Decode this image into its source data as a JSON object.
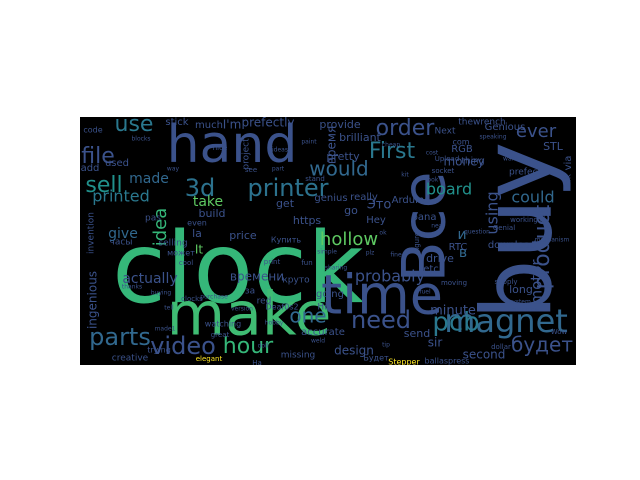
{
  "image": {
    "kind": "word cloud",
    "background_color": "#000000",
    "page_color": "#ffffff",
    "palette": [
      "#440154",
      "#3b528b",
      "#21918c",
      "#35b779",
      "#5ec962",
      "#fde725"
    ]
  },
  "words": [
    {
      "text": "clock",
      "color": "#35b779"
    },
    {
      "text": "make",
      "color": "#3fbc73"
    },
    {
      "text": "buy",
      "color": "#3b528b"
    },
    {
      "text": "hand",
      "color": "#3b528b"
    },
    {
      "text": "time",
      "color": "#3b528b"
    },
    {
      "text": "Все",
      "color": "#3b528b"
    },
    {
      "text": "magnet",
      "color": "#31688e"
    },
    {
      "text": "printer",
      "color": "#2c728e"
    },
    {
      "text": "3d",
      "color": "#2c728e"
    },
    {
      "text": "use",
      "color": "#2a788e"
    },
    {
      "text": "order",
      "color": "#3b528b"
    },
    {
      "text": "First",
      "color": "#2a788e"
    },
    {
      "text": "one",
      "color": "#31688e"
    },
    {
      "text": "need",
      "color": "#3b528b"
    },
    {
      "text": "pcb",
      "color": "#2a788e"
    },
    {
      "text": "будет",
      "color": "#3b528b"
    },
    {
      "text": "sell",
      "color": "#21918c"
    },
    {
      "text": "file",
      "color": "#3b528b"
    },
    {
      "text": "hour",
      "color": "#35b779"
    },
    {
      "text": "video",
      "color": "#3b528b"
    },
    {
      "text": "parts",
      "color": "#31688e"
    },
    {
      "text": "product",
      "color": "#3b528b"
    },
    {
      "text": "would",
      "color": "#31688e"
    },
    {
      "text": "ever",
      "color": "#3b528b"
    },
    {
      "text": "could",
      "color": "#31688e"
    },
    {
      "text": "idea",
      "color": "#35b779"
    },
    {
      "text": "using",
      "color": "#3b528b"
    },
    {
      "text": "board",
      "color": "#21918c"
    },
    {
      "text": "motor",
      "color": "#3b528b"
    },
    {
      "text": "hollow",
      "color": "#5ec962"
    },
    {
      "text": "printed",
      "color": "#2a788e"
    },
    {
      "text": "made",
      "color": "#31688e"
    },
    {
      "text": "give",
      "color": "#31688e"
    },
    {
      "text": "actually",
      "color": "#3b528b"
    },
    {
      "text": "probably",
      "color": "#3b528b"
    },
    {
      "text": "ingenious",
      "color": "#3b528b"
    },
    {
      "text": "minute",
      "color": "#3b528b"
    },
    {
      "text": "sir",
      "color": "#3b528b"
    },
    {
      "text": "second",
      "color": "#3b528b"
    },
    {
      "text": "design",
      "color": "#3b528b"
    },
    {
      "text": "money",
      "color": "#3b528b"
    },
    {
      "text": "take",
      "color": "#5ec962"
    },
    {
      "text": "время",
      "color": "#3b528b"
    },
    {
      "text": "времени",
      "color": "#3b528b"
    },
    {
      "text": "Это",
      "color": "#3b528b"
    },
    {
      "text": "It",
      "color": "#5ec962"
    },
    {
      "text": "и",
      "color": "#31688e"
    },
    {
      "text": "в",
      "color": "#31688e"
    },
    {
      "text": "I'm",
      "color": "#3b528b"
    },
    {
      "text": "prefectly",
      "color": "#3b528b"
    },
    {
      "text": "provide",
      "color": "#3b528b"
    },
    {
      "text": "brilliant",
      "color": "#3b528b"
    },
    {
      "text": "pretty",
      "color": "#3b528b"
    },
    {
      "text": "really",
      "color": "#3b528b"
    },
    {
      "text": "Genious",
      "color": "#3b528b"
    },
    {
      "text": "thewrench",
      "color": "#3b528b"
    },
    {
      "text": "STL",
      "color": "#3b528b"
    },
    {
      "text": "RGB",
      "color": "#3b528b"
    },
    {
      "text": "Arduino",
      "color": "#3b528b"
    },
    {
      "text": "RTC",
      "color": "#3b528b"
    },
    {
      "text": "download",
      "color": "#3b528b"
    },
    {
      "text": "drive",
      "color": "#3b528b"
    },
    {
      "text": "etc",
      "color": "#3b528b"
    },
    {
      "text": "long",
      "color": "#3b528b"
    },
    {
      "text": "price",
      "color": "#3b528b"
    },
    {
      "text": "get",
      "color": "#3b528b"
    },
    {
      "text": "go",
      "color": "#3b528b"
    },
    {
      "text": "Hey",
      "color": "#3b528b"
    },
    {
      "text": "going",
      "color": "#3b528b"
    },
    {
      "text": "accurate",
      "color": "#3b528b"
    },
    {
      "text": "send",
      "color": "#3b528b"
    },
    {
      "text": "genius",
      "color": "#3b528b"
    },
    {
      "text": "https",
      "color": "#3b528b"
    },
    {
      "text": "build",
      "color": "#3b528b"
    },
    {
      "text": "much",
      "color": "#3b528b"
    },
    {
      "text": "stick",
      "color": "#3b528b"
    },
    {
      "text": "project",
      "color": "#3b528b"
    },
    {
      "text": "add",
      "color": "#3b528b"
    },
    {
      "text": "used",
      "color": "#3b528b"
    },
    {
      "text": "selling",
      "color": "#3b528b"
    },
    {
      "text": "invention",
      "color": "#3b528b"
    },
    {
      "text": "creative",
      "color": "#3b528b"
    },
    {
      "text": "missing",
      "color": "#3b528b"
    },
    {
      "text": "Stepper",
      "color": "#fde725"
    },
    {
      "text": "elegant",
      "color": "#fde725"
    },
    {
      "text": "ballaspress",
      "color": "#3b528b"
    },
    {
      "text": "thing",
      "color": "#3b528b"
    },
    {
      "text": "Next",
      "color": "#3b528b"
    },
    {
      "text": "com",
      "color": "#3b528b"
    },
    {
      "text": "socket",
      "color": "#3b528b"
    },
    {
      "text": "via",
      "color": "#3b528b"
    },
    {
      "text": "link",
      "color": "#3b528b"
    },
    {
      "text": "supply",
      "color": "#3b528b"
    },
    {
      "text": "moving",
      "color": "#3b528b"
    },
    {
      "text": "bana",
      "color": "#3b528b"
    },
    {
      "text": "Hi",
      "color": "#3b528b"
    },
    {
      "text": "red",
      "color": "#3b528b"
    },
    {
      "text": "la",
      "color": "#3b528b"
    },
    {
      "text": "за",
      "color": "#3b528b"
    },
    {
      "text": "круто",
      "color": "#3b528b"
    },
    {
      "text": "часы",
      "color": "#3b528b"
    },
    {
      "text": "может",
      "color": "#3b528b"
    },
    {
      "text": "Купить",
      "color": "#3b528b"
    },
    {
      "text": "Будет",
      "color": "#3b528b"
    },
    {
      "text": "Deaf0s2",
      "color": "#3b528b"
    },
    {
      "text": "watching",
      "color": "#3b528b"
    },
    {
      "text": "trying",
      "color": "#3b528b"
    },
    {
      "text": "working",
      "color": "#3b528b"
    },
    {
      "text": "even",
      "color": "#3b528b"
    },
    {
      "text": "prefect",
      "color": "#3b528b"
    },
    {
      "text": "Upload",
      "color": "#3b528b"
    },
    {
      "text": "mechanism",
      "color": "#3b528b"
    },
    {
      "text": "Genial",
      "color": "#3b528b"
    },
    {
      "text": "code",
      "color": "#3b528b"
    },
    {
      "text": "edit",
      "color": "#3b528b"
    },
    {
      "text": "great",
      "color": "#3b528b"
    },
    {
      "text": "see",
      "color": "#3b528b"
    },
    {
      "text": "Ha",
      "color": "#3b528b"
    },
    {
      "text": "fun",
      "color": "#3b528b"
    },
    {
      "text": "pas",
      "color": "#3b528b"
    },
    {
      "text": "cool",
      "color": "#3b528b"
    },
    {
      "text": "figure",
      "color": "#3b528b"
    },
    {
      "text": "dollar",
      "color": "#3b528b"
    },
    {
      "text": "clocks",
      "color": "#3b528b"
    },
    {
      "text": "stand",
      "color": "#3b528b"
    },
    {
      "text": "purchase",
      "color": "#3b528b"
    },
    {
      "text": "mindblow",
      "color": "#3b528b"
    },
    {
      "text": "Wow",
      "color": "#3b528b"
    },
    {
      "text": "nice",
      "color": "#3b528b"
    },
    {
      "text": "print",
      "color": "#3b528b"
    },
    {
      "text": "speaking",
      "color": "#3b528b"
    },
    {
      "text": "blocks",
      "color": "#3b528b"
    },
    {
      "text": "fuel",
      "color": "#3b528b"
    },
    {
      "text": "question",
      "color": "#3b528b"
    },
    {
      "text": "neat",
      "color": "#3b528b"
    },
    {
      "text": "cost",
      "color": "#3b528b"
    },
    {
      "text": "plz",
      "color": "#3b528b"
    },
    {
      "text": "simple",
      "color": "#3b528b"
    },
    {
      "text": "buying",
      "color": "#3b528b"
    },
    {
      "text": "hobby",
      "color": "#3b528b"
    },
    {
      "text": "system",
      "color": "#3b528b"
    },
    {
      "text": "ok",
      "color": "#3b528b"
    },
    {
      "text": "waiting",
      "color": "#3b528b"
    },
    {
      "text": "fine",
      "color": "#3b528b"
    },
    {
      "text": "version",
      "color": "#3b528b"
    },
    {
      "text": "paint",
      "color": "#3b528b"
    },
    {
      "text": "cheap",
      "color": "#3b528b"
    },
    {
      "text": "kit",
      "color": "#3b528b"
    },
    {
      "text": "way",
      "color": "#3b528b"
    },
    {
      "text": "part",
      "color": "#3b528b"
    },
    {
      "text": "thanks",
      "color": "#3b528b"
    },
    {
      "text": "tell",
      "color": "#3b528b"
    },
    {
      "text": "weld",
      "color": "#3b528b"
    },
    {
      "text": "tip",
      "color": "#3b528b"
    },
    {
      "text": "look",
      "color": "#3b528b"
    },
    {
      "text": "ideas",
      "color": "#3b528b"
    },
    {
      "text": "made1",
      "color": "#3b528b"
    },
    {
      "text": "doll",
      "color": "#3b528b"
    },
    {
      "text": "sharing",
      "color": "#3b528b"
    }
  ]
}
